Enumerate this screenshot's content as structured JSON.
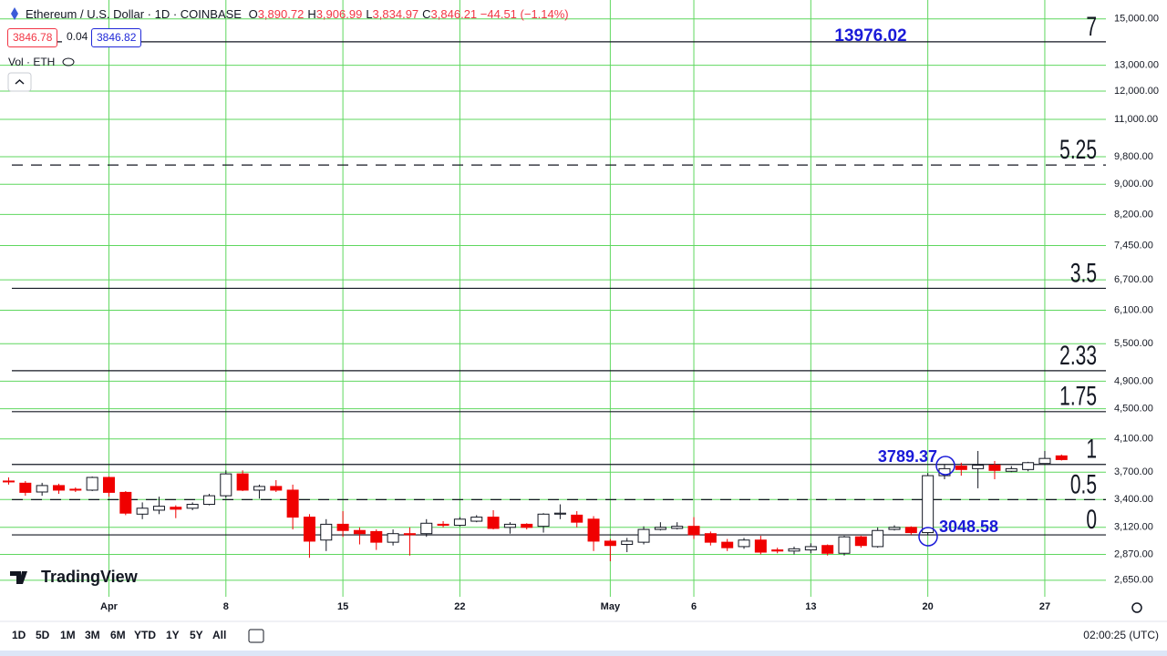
{
  "header": {
    "symbol": "Ethereum / U.S. Dollar · 1D · COINBASE",
    "ohlc": [
      {
        "key": "O",
        "value": "3,890.72"
      },
      {
        "key": "H",
        "value": "3,906.99"
      },
      {
        "key": "L",
        "value": "3,834.97"
      },
      {
        "key": "C",
        "value": "3,846.21"
      }
    ],
    "change": "−44.51 (−1.14%)",
    "bid": "3846.78",
    "spread": "0.04",
    "ask": "3846.82",
    "volume_label": "Vol · ETH"
  },
  "branding": "TradingView",
  "toolbar": {
    "ranges": [
      "1D",
      "5D",
      "1M",
      "3M",
      "6M",
      "YTD",
      "1Y",
      "5Y",
      "All"
    ],
    "clock": "02:00:25 (UTC)"
  },
  "chart_data": {
    "type": "candlestick",
    "log_scale": true,
    "grid": true,
    "grid_color": "#5fd75f",
    "up_color": "#ffffff",
    "down_color": "#f00000",
    "categories": [
      null,
      null,
      null,
      null,
      null,
      null,
      "Apr",
      null,
      null,
      null,
      null,
      null,
      null,
      "8",
      null,
      null,
      null,
      null,
      null,
      null,
      "15",
      null,
      null,
      null,
      null,
      null,
      null,
      "22",
      null,
      null,
      null,
      null,
      null,
      null,
      null,
      null,
      "May",
      null,
      null,
      null,
      null,
      "6",
      null,
      null,
      null,
      null,
      null,
      null,
      "13",
      null,
      null,
      null,
      null,
      null,
      null,
      "20",
      null,
      null,
      null,
      null,
      null,
      null,
      "27",
      null
    ],
    "open": [
      3600,
      3576,
      3480,
      3550,
      3510,
      3500,
      3640,
      3476,
      3250,
      3290,
      3320,
      3310,
      3350,
      3440,
      3680,
      3500,
      3540,
      3500,
      3220,
      3000,
      3150,
      3090,
      3080,
      2980,
      3060,
      3060,
      3150,
      3140,
      3180,
      3220,
      3120,
      3150,
      3130,
      3250,
      3240,
      3200,
      2990,
      2960,
      2980,
      3100,
      3110,
      3130,
      3060,
      2980,
      2940,
      3000,
      2910,
      2900,
      2910,
      2950,
      2880,
      3030,
      2940,
      3100,
      3120,
      3070,
      3660,
      3770,
      3740,
      3780,
      3710,
      3730,
      3800,
      3890.72
    ],
    "high": [
      3640,
      3600,
      3580,
      3570,
      3530,
      3650,
      3650,
      3490,
      3370,
      3430,
      3340,
      3370,
      3460,
      3720,
      3720,
      3560,
      3610,
      3560,
      3250,
      3200,
      3280,
      3120,
      3100,
      3100,
      3120,
      3200,
      3180,
      3220,
      3240,
      3290,
      3170,
      3160,
      3260,
      3350,
      3280,
      3230,
      3010,
      3020,
      3130,
      3170,
      3170,
      3220,
      3080,
      3010,
      3020,
      3040,
      2930,
      2940,
      2970,
      2960,
      3040,
      3040,
      3120,
      3140,
      3130,
      3690,
      3789.37,
      3810,
      3950,
      3830,
      3770,
      3820,
      3950,
      3906.99
    ],
    "low": [
      3560,
      3440,
      3440,
      3460,
      3480,
      3490,
      3430,
      3240,
      3200,
      3250,
      3210,
      3290,
      3340,
      3420,
      3490,
      3410,
      3480,
      3100,
      2840,
      2900,
      3030,
      2960,
      2910,
      2950,
      2860,
      3030,
      3120,
      3130,
      3170,
      3100,
      3060,
      3100,
      3070,
      3200,
      3120,
      2900,
      2810,
      2890,
      2960,
      3090,
      3100,
      3010,
      2950,
      2900,
      2920,
      2870,
      2880,
      2870,
      2880,
      2860,
      2860,
      2930,
      2930,
      3090,
      3050,
      3048.58,
      3620,
      3660,
      3520,
      3620,
      3700,
      3710,
      3790,
      3834.97
    ],
    "close": [
      3590,
      3476,
      3550,
      3500,
      3500,
      3640,
      3476,
      3260,
      3310,
      3330,
      3300,
      3350,
      3440,
      3680,
      3500,
      3540,
      3500,
      3220,
      2990,
      3150,
      3090,
      3060,
      2980,
      3060,
      3050,
      3160,
      3140,
      3200,
      3220,
      3110,
      3150,
      3120,
      3250,
      3260,
      3170,
      2990,
      2950,
      2990,
      3100,
      3120,
      3130,
      3050,
      2980,
      2930,
      3000,
      2890,
      2900,
      2920,
      2940,
      2880,
      3030,
      2950,
      3090,
      3120,
      3070,
      3660,
      3740,
      3730,
      3780,
      3720,
      3740,
      3810,
      3860,
      3846.21
    ],
    "ylim": [
      2518,
      15900
    ],
    "yticks": [
      {
        "value": 15000,
        "label": "15,000.00"
      },
      {
        "value": 13000,
        "label": "13,000.00"
      },
      {
        "value": 12000,
        "label": "12,000.00"
      },
      {
        "value": 11000,
        "label": "11,000.00"
      },
      {
        "value": 9800,
        "label": "9,800.00"
      },
      {
        "value": 9000,
        "label": "9,000.00"
      },
      {
        "value": 8200,
        "label": "8,200.00"
      },
      {
        "value": 7450,
        "label": "7,450.00"
      },
      {
        "value": 6700,
        "label": "6,700.00"
      },
      {
        "value": 6100,
        "label": "6,100.00"
      },
      {
        "value": 5500,
        "label": "5,500.00"
      },
      {
        "value": 4900,
        "label": "4,900.00"
      },
      {
        "value": 4500,
        "label": "4,500.00"
      },
      {
        "value": 4100,
        "label": "4,100.00"
      },
      {
        "value": 3700,
        "label": "3,700.00"
      },
      {
        "value": 3400,
        "label": "3,400.00"
      },
      {
        "value": 3120,
        "label": "3,120.00"
      },
      {
        "value": 2870,
        "label": "2,870.00"
      },
      {
        "value": 2650,
        "label": "2,650.00"
      }
    ],
    "levels": [
      {
        "label": "7",
        "value": 13976.02,
        "dashed": false
      },
      {
        "label": "5.25",
        "value": 9551,
        "dashed": true
      },
      {
        "label": "3.5",
        "value": 6527,
        "dashed": false
      },
      {
        "label": "2.33",
        "value": 5061,
        "dashed": false
      },
      {
        "label": "1.75",
        "value": 4460,
        "dashed": false
      },
      {
        "label": "1",
        "value": 3789.37,
        "dashed": false
      },
      {
        "label": "0.5",
        "value": 3399,
        "dashed": true
      },
      {
        "label": "0",
        "value": 3048.58,
        "dashed": false
      }
    ],
    "annotations": [
      13976.02,
      3789.37,
      3048.58
    ]
  }
}
